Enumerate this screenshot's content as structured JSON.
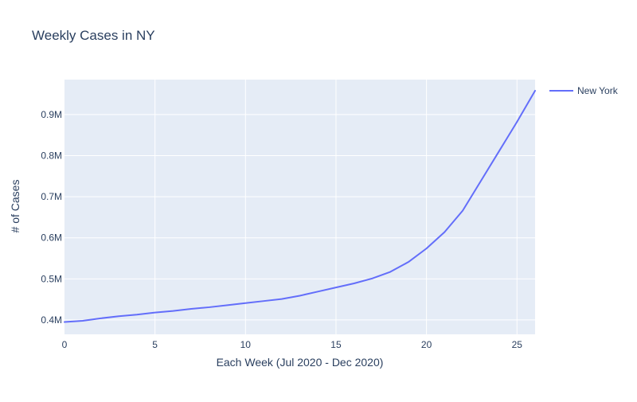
{
  "chart_data": {
    "type": "line",
    "title": "Weekly Cases in NY",
    "xlabel": "Each Week (Jul 2020 - Dec 2020)",
    "ylabel": "# of Cases",
    "xlim": [
      0,
      26
    ],
    "ylim": [
      365000,
      985000
    ],
    "x_ticks": [
      0,
      5,
      10,
      15,
      20,
      25
    ],
    "y_ticks": [
      400000,
      500000,
      600000,
      700000,
      800000,
      900000
    ],
    "y_tick_labels": [
      "0.4M",
      "0.5M",
      "0.6M",
      "0.7M",
      "0.8M",
      "0.9M"
    ],
    "grid": true,
    "legend_position": "top-right",
    "series": [
      {
        "name": "New York",
        "color": "#636efa",
        "x": [
          0,
          1,
          2,
          3,
          4,
          5,
          6,
          7,
          8,
          9,
          10,
          11,
          12,
          13,
          14,
          15,
          16,
          17,
          18,
          19,
          20,
          21,
          22,
          23,
          24,
          25,
          26
        ],
        "values": [
          395000,
          398000,
          404000,
          409000,
          413000,
          418000,
          422000,
          427000,
          431000,
          436000,
          441000,
          446000,
          451000,
          459000,
          469000,
          479000,
          489000,
          501000,
          517000,
          541000,
          574000,
          614000,
          666000,
          738000,
          810000,
          882000,
          958000
        ]
      }
    ]
  }
}
